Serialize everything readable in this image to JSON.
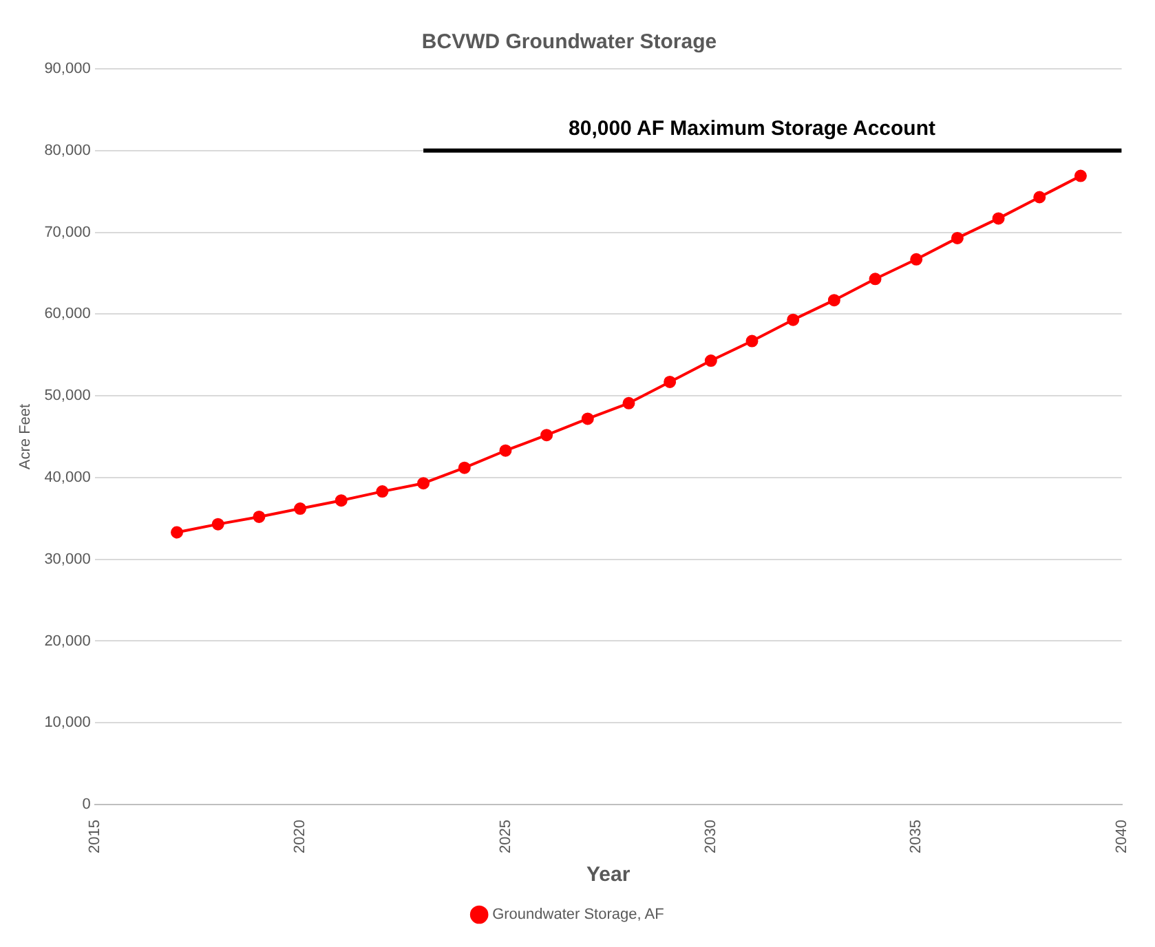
{
  "chart_data": {
    "type": "line",
    "title": "BCVWD Groundwater Storage",
    "xlabel": "Year",
    "ylabel": "Acre Feet",
    "x": [
      2017,
      2018,
      2019,
      2020,
      2021,
      2022,
      2023,
      2024,
      2025,
      2026,
      2027,
      2028,
      2029,
      2030,
      2031,
      2032,
      2033,
      2034,
      2035,
      2036,
      2037,
      2038,
      2039
    ],
    "series": [
      {
        "name": "Groundwater Storage, AF",
        "color": "#ff0000",
        "marker": "circle",
        "values": [
          33300,
          34300,
          35200,
          36200,
          37200,
          38300,
          39300,
          41200,
          43300,
          45200,
          47200,
          49100,
          51700,
          54300,
          56700,
          59300,
          61700,
          64300,
          66700,
          69300,
          71700,
          74300,
          76900
        ]
      },
      {
        "color": "#000000",
        "marker": "none",
        "x": [
          2023,
          2040
        ],
        "values": [
          80000,
          80000
        ]
      }
    ],
    "annotations": [
      {
        "text": "80,000 AF Maximum Storage Account",
        "x": 2031,
        "y": 80000
      }
    ],
    "xlim": [
      2015,
      2040
    ],
    "xticks": [
      2015,
      2020,
      2025,
      2030,
      2035,
      2040
    ],
    "ylim": [
      0,
      90000
    ],
    "yticks": [
      0,
      {
        "value": 10000,
        "label": "10,000"
      },
      {
        "value": 20000,
        "label": "20,000"
      },
      {
        "value": 30000,
        "label": "30,000"
      },
      {
        "value": 40000,
        "label": "40,000"
      },
      {
        "value": 50000,
        "label": "50,000"
      },
      {
        "value": 60000,
        "label": "60,000"
      },
      {
        "value": 70000,
        "label": "70,000"
      },
      {
        "value": 80000,
        "label": "80,000"
      },
      {
        "value": 90000,
        "label": "90,000"
      }
    ],
    "grid": "y",
    "legend": "bottom",
    "line_style": "solid"
  }
}
